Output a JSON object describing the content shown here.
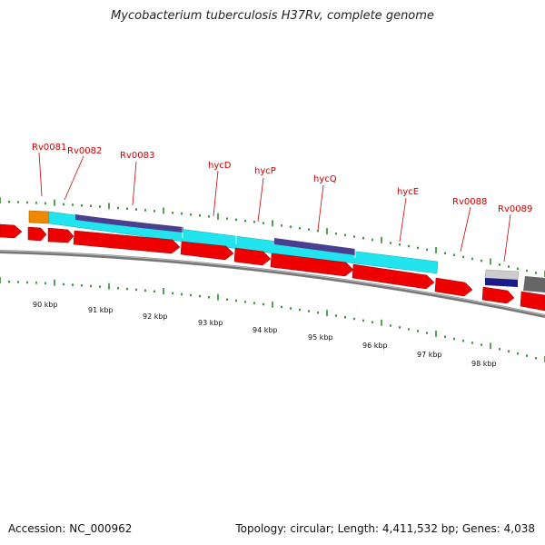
{
  "title": "Mycobacterium tuberculosis H37Rv, complete genome",
  "footer": {
    "accession": "Accession: NC_000962",
    "summary": "Topology: circular; Length: 4,411,532 bp; Genes: 4,038"
  },
  "colors": {
    "cds": "#ee0000",
    "gene": "#22e4ee",
    "feature": "#4a3f8f",
    "misc": "#ee8800",
    "tick": "#117a11",
    "label": "#cc0000",
    "backbone": "#888888"
  },
  "gene_labels": [
    "Rv0081",
    "Rv0082",
    "Rv0083",
    "hycD",
    "hycP",
    "hycQ",
    "hycE",
    "Rv0088",
    "Rv0089"
  ],
  "scale_labels": [
    "90 kbp",
    "91 kbp",
    "92 kbp",
    "93 kbp",
    "94 kbp",
    "95 kbp",
    "96 kbp",
    "97 kbp",
    "98 kbp"
  ]
}
